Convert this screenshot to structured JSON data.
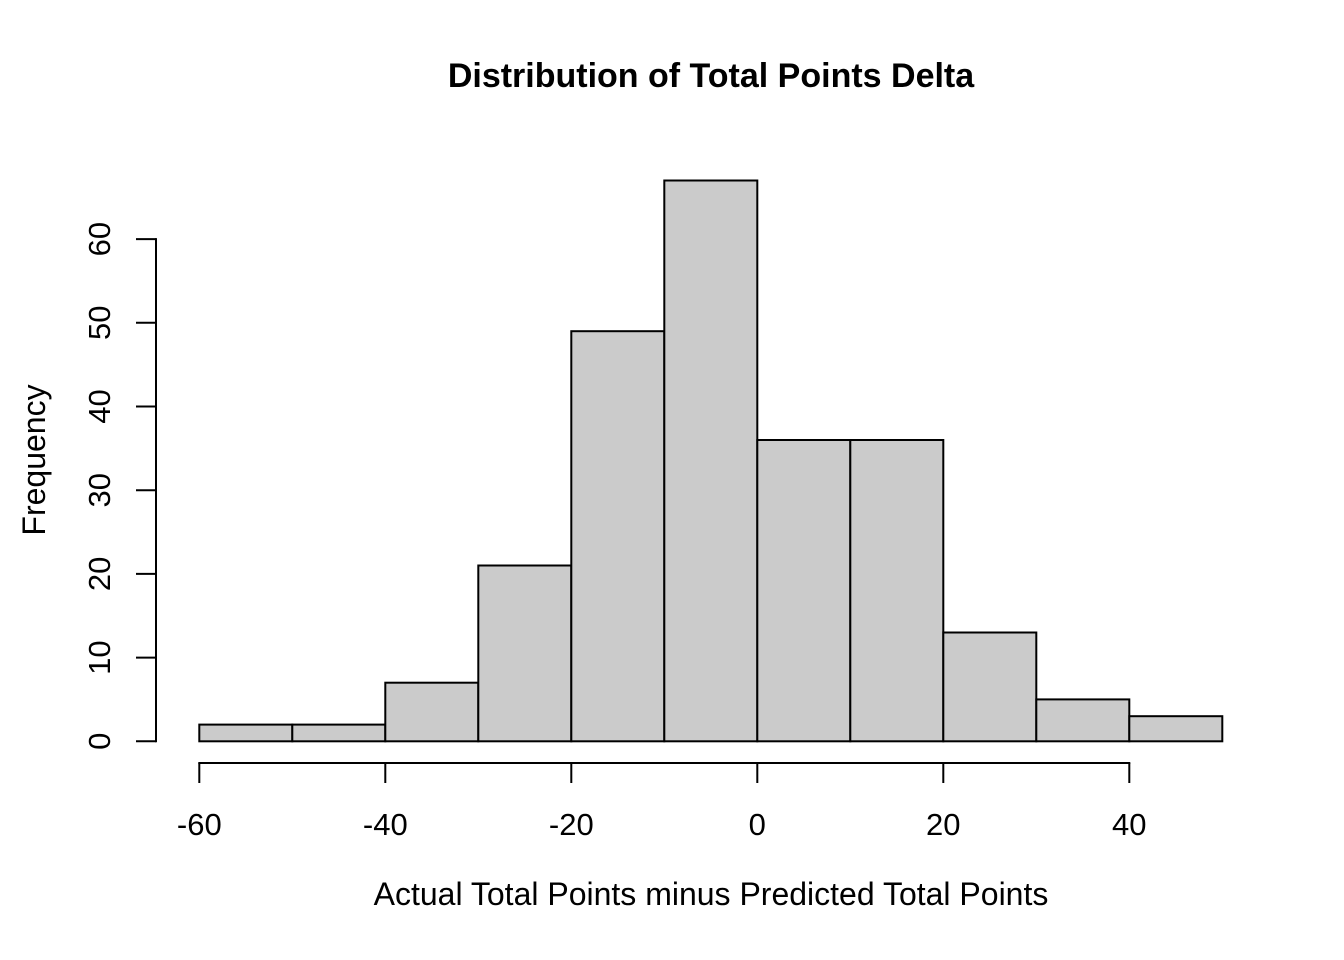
{
  "chart_data": {
    "type": "bar",
    "subtype": "histogram",
    "title": "Distribution of Total Points Delta",
    "xlabel": "Actual Total Points minus Predicted Total Points",
    "ylabel": "Frequency",
    "bin_width": 10,
    "bin_edges": [
      -60,
      -50,
      -40,
      -30,
      -20,
      -10,
      0,
      10,
      20,
      30,
      40,
      50
    ],
    "counts": [
      2,
      2,
      7,
      21,
      49,
      67,
      36,
      36,
      13,
      5,
      3
    ],
    "x_ticks": [
      -60,
      -40,
      -20,
      0,
      20,
      40
    ],
    "y_ticks": [
      0,
      10,
      20,
      30,
      40,
      50,
      60
    ],
    "xlim": [
      -60,
      50
    ],
    "ylim": [
      0,
      67
    ],
    "grid": false,
    "legend": "none",
    "colors": {
      "bar_fill": "#CBCBCB",
      "bar_stroke": "#000000",
      "axis": "#000000",
      "text": "#000000",
      "background": "#FFFFFF"
    }
  }
}
